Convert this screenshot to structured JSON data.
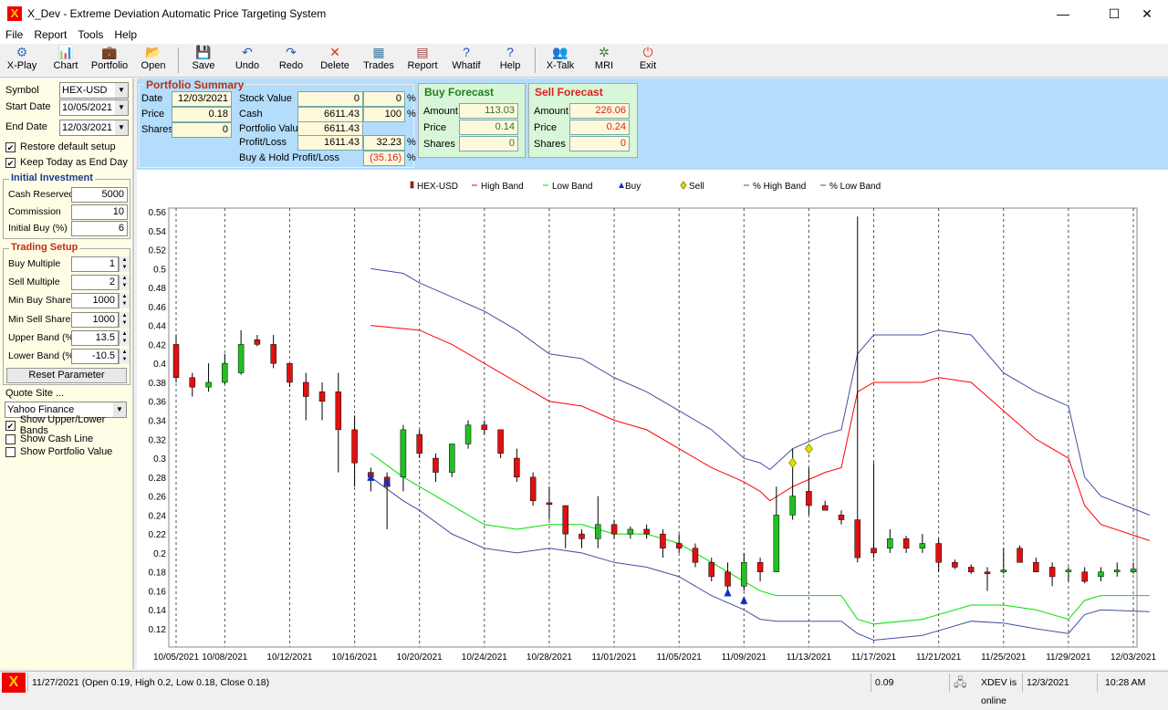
{
  "window": {
    "title": "X_Dev - Extreme Deviation Automatic Price Targeting System"
  },
  "menu": [
    "File",
    "Report",
    "Tools",
    "Help"
  ],
  "toolbar": [
    {
      "label": "X-Play",
      "icon": "x-play-icon",
      "glyph": "⚙",
      "color": "#3a6fc4"
    },
    {
      "label": "Chart",
      "icon": "chart-icon",
      "glyph": "📊",
      "color": "#2a7a2a"
    },
    {
      "label": "Portfolio",
      "icon": "portfolio-icon",
      "glyph": "💼",
      "color": "#a0522d"
    },
    {
      "label": "Open",
      "icon": "open-icon",
      "glyph": "📂",
      "color": "#d4a017"
    },
    {
      "label": "Save",
      "icon": "save-icon",
      "glyph": "💾",
      "color": "#3050a0"
    },
    {
      "label": "Undo",
      "icon": "undo-icon",
      "glyph": "↶",
      "color": "#2060c0"
    },
    {
      "label": "Redo",
      "icon": "redo-icon",
      "glyph": "↷",
      "color": "#2060c0"
    },
    {
      "label": "Delete",
      "icon": "delete-icon",
      "glyph": "✕",
      "color": "#e03020"
    },
    {
      "label": "Trades",
      "icon": "trades-icon",
      "glyph": "▦",
      "color": "#3a7aa0"
    },
    {
      "label": "Report",
      "icon": "report-icon",
      "glyph": "▤",
      "color": "#a04040"
    },
    {
      "label": "Whatif",
      "icon": "whatif-icon",
      "glyph": "?",
      "color": "#2050c0"
    },
    {
      "label": "Help",
      "icon": "help-icon",
      "glyph": "?",
      "color": "#2050c0"
    },
    {
      "label": "X-Talk",
      "icon": "x-talk-icon",
      "glyph": "👥",
      "color": "#c06020"
    },
    {
      "label": "MRI",
      "icon": "mri-icon",
      "glyph": "✲",
      "color": "#408040"
    },
    {
      "label": "Exit",
      "icon": "exit-icon",
      "glyph": "⏻",
      "color": "#e04020"
    }
  ],
  "left": {
    "symbol_label": "Symbol",
    "symbol": "HEX-USD",
    "start_label": "Start Date",
    "start": "10/05/2021",
    "end_label": "End Date",
    "end": "12/03/2021",
    "restore": "Restore default setup",
    "keep_today": "Keep Today as End Day",
    "initial": {
      "title": "Initial Investment",
      "fields": [
        {
          "label": "Cash Reserved",
          "value": "5000"
        },
        {
          "label": "Commission",
          "value": "10"
        },
        {
          "label": "Initial Buy (%)",
          "value": "6"
        }
      ]
    },
    "trading": {
      "title": "Trading Setup",
      "fields": [
        {
          "label": "Buy Multiple",
          "value": "1"
        },
        {
          "label": "Sell Multiple",
          "value": "2"
        },
        {
          "label": "Min Buy Shares",
          "value": "1000"
        },
        {
          "label": "Min Sell Shares",
          "value": "1000"
        },
        {
          "label": "Upper Band (%)",
          "value": "13.5"
        },
        {
          "label": "Lower Band (%)",
          "value": "-10.5"
        }
      ],
      "reset": "Reset Parameter"
    },
    "quote_label": "Quote Site ...",
    "quote": "Yahoo Finance",
    "show_bands": "Show Upper/Lower Bands",
    "show_cash": "Show Cash Line",
    "show_portfolio": "Show Portfolio Value"
  },
  "summary": {
    "title": "Portfolio Summary",
    "date_label": "Date",
    "date": "12/03/2021",
    "price_label": "Price",
    "price": "0.18",
    "shares_label": "Shares",
    "shares": "0",
    "stock_value_label": "Stock Value",
    "stock_value": "0",
    "stock_pct": "0",
    "cash_label": "Cash",
    "cash": "6611.43",
    "cash_pct": "100",
    "portfolio_label": "Portfolio Value",
    "portfolio": "6611.43",
    "pl_label": "Profit/Loss",
    "pl": "1611.43",
    "pl_pct": "32.23",
    "bh_label": "Buy & Hold Profit/Loss",
    "bh_pct": "(35.16)",
    "pct": "%"
  },
  "buy_forecast": {
    "title": "Buy Forecast",
    "amount_label": "Amount",
    "amount": "113.03",
    "price_label": "Price",
    "price": "0.14",
    "shares_label": "Shares",
    "shares": "0"
  },
  "sell_forecast": {
    "title": "Sell Forecast",
    "amount_label": "Amount",
    "amount": "226.06",
    "price_label": "Price",
    "price": "0.24",
    "shares_label": "Shares",
    "shares": "0"
  },
  "chart_data": {
    "type": "candlestick",
    "legend": [
      "HEX-USD",
      "High Band",
      "Low Band",
      "Buy",
      "Sell",
      "% High Band",
      "% Low Band"
    ],
    "colors": {
      "up": "#22c022",
      "down": "#e01010",
      "high_band": "#ff0000",
      "low_band": "#00e000",
      "pct_band": "#4050a0",
      "buy": "#1030c0",
      "sell": "#e0e000"
    },
    "ylim": [
      0.11,
      0.56
    ],
    "yticks": [
      0.12,
      0.14,
      0.16,
      0.18,
      0.2,
      0.22,
      0.24,
      0.26,
      0.28,
      0.3,
      0.32,
      0.34,
      0.36,
      0.38,
      0.4,
      0.42,
      0.44,
      0.46,
      0.48,
      0.5,
      0.52,
      0.54,
      0.56
    ],
    "xticks": [
      {
        "day": 0,
        "label": "10/05/2021"
      },
      {
        "day": 3,
        "label": "10/08/2021"
      },
      {
        "day": 7,
        "label": "10/12/2021"
      },
      {
        "day": 11,
        "label": "10/16/2021"
      },
      {
        "day": 15,
        "label": "10/20/2021"
      },
      {
        "day": 19,
        "label": "10/24/2021"
      },
      {
        "day": 23,
        "label": "10/28/2021"
      },
      {
        "day": 27,
        "label": "11/01/2021"
      },
      {
        "day": 31,
        "label": "11/05/2021"
      },
      {
        "day": 35,
        "label": "11/09/2021"
      },
      {
        "day": 39,
        "label": "11/13/2021"
      },
      {
        "day": 43,
        "label": "11/17/2021"
      },
      {
        "day": 47,
        "label": "11/21/2021"
      },
      {
        "day": 51,
        "label": "11/25/2021"
      },
      {
        "day": 55,
        "label": "11/29/2021"
      },
      {
        "day": 59,
        "label": "12/03/2021"
      }
    ],
    "ohlc": [
      [
        0.42,
        0.43,
        0.38,
        0.385
      ],
      [
        0.385,
        0.39,
        0.365,
        0.375
      ],
      [
        0.375,
        0.4,
        0.37,
        0.38
      ],
      [
        0.38,
        0.41,
        0.378,
        0.4
      ],
      [
        0.39,
        0.435,
        0.388,
        0.42
      ],
      [
        0.425,
        0.43,
        0.418,
        0.42
      ],
      [
        0.42,
        0.43,
        0.395,
        0.4
      ],
      [
        0.4,
        0.4,
        0.375,
        0.38
      ],
      [
        0.38,
        0.39,
        0.34,
        0.365
      ],
      [
        0.37,
        0.38,
        0.34,
        0.36
      ],
      [
        0.37,
        0.39,
        0.285,
        0.33
      ],
      [
        0.33,
        0.345,
        0.27,
        0.295
      ],
      [
        0.285,
        0.29,
        0.265,
        0.28
      ],
      [
        0.28,
        0.285,
        0.225,
        0.27
      ],
      [
        0.28,
        0.335,
        0.265,
        0.33
      ],
      [
        0.325,
        0.33,
        0.3,
        0.305
      ],
      [
        0.3,
        0.305,
        0.275,
        0.285
      ],
      [
        0.285,
        0.315,
        0.28,
        0.315
      ],
      [
        0.315,
        0.34,
        0.31,
        0.335
      ],
      [
        0.335,
        0.34,
        0.325,
        0.33
      ],
      [
        0.33,
        0.33,
        0.3,
        0.305
      ],
      [
        0.3,
        0.31,
        0.275,
        0.28
      ],
      [
        0.28,
        0.285,
        0.25,
        0.255
      ],
      [
        0.253,
        0.27,
        0.235,
        0.252
      ],
      [
        0.25,
        0.25,
        0.205,
        0.22
      ],
      [
        0.22,
        0.225,
        0.205,
        0.215
      ],
      [
        0.215,
        0.26,
        0.205,
        0.23
      ],
      [
        0.23,
        0.235,
        0.215,
        0.22
      ],
      [
        0.22,
        0.228,
        0.215,
        0.225
      ],
      [
        0.225,
        0.23,
        0.215,
        0.22
      ],
      [
        0.22,
        0.225,
        0.195,
        0.205
      ],
      [
        0.21,
        0.22,
        0.2,
        0.205
      ],
      [
        0.205,
        0.21,
        0.185,
        0.19
      ],
      [
        0.19,
        0.195,
        0.17,
        0.175
      ],
      [
        0.18,
        0.19,
        0.16,
        0.165
      ],
      [
        0.165,
        0.2,
        0.16,
        0.19
      ],
      [
        0.19,
        0.195,
        0.17,
        0.18
      ],
      [
        0.18,
        0.27,
        0.18,
        0.24
      ],
      [
        0.24,
        0.31,
        0.235,
        0.26
      ],
      [
        0.265,
        0.29,
        0.24,
        0.25
      ],
      [
        0.25,
        0.255,
        0.245,
        0.245
      ],
      [
        0.24,
        0.245,
        0.23,
        0.235
      ],
      [
        0.235,
        0.555,
        0.19,
        0.195
      ],
      [
        0.205,
        0.295,
        0.195,
        0.2
      ],
      [
        0.205,
        0.225,
        0.2,
        0.215
      ],
      [
        0.215,
        0.218,
        0.2,
        0.205
      ],
      [
        0.205,
        0.22,
        0.2,
        0.21
      ],
      [
        0.21,
        0.215,
        0.18,
        0.19
      ],
      [
        0.19,
        0.193,
        0.183,
        0.185
      ],
      [
        0.185,
        0.188,
        0.178,
        0.18
      ],
      [
        0.18,
        0.185,
        0.16,
        0.178
      ],
      [
        0.18,
        0.205,
        0.178,
        0.182
      ],
      [
        0.205,
        0.208,
        0.19,
        0.19
      ],
      [
        0.19,
        0.195,
        0.18,
        0.18
      ],
      [
        0.185,
        0.19,
        0.165,
        0.175
      ],
      [
        0.18,
        0.185,
        0.17,
        0.182
      ],
      [
        0.18,
        0.185,
        0.168,
        0.17
      ],
      [
        0.175,
        0.185,
        0.17,
        0.18
      ],
      [
        0.18,
        0.19,
        0.175,
        0.182
      ],
      [
        0.18,
        0.19,
        0.178,
        0.183
      ]
    ],
    "high_band": [
      [
        12,
        0.44
      ],
      [
        15,
        0.435
      ],
      [
        17,
        0.42
      ],
      [
        19,
        0.4
      ],
      [
        21,
        0.38
      ],
      [
        23,
        0.36
      ],
      [
        25,
        0.355
      ],
      [
        27,
        0.34
      ],
      [
        29,
        0.33
      ],
      [
        31,
        0.31
      ],
      [
        33,
        0.29
      ],
      [
        35,
        0.275
      ],
      [
        36,
        0.265
      ],
      [
        36.6,
        0.255
      ],
      [
        38,
        0.27
      ],
      [
        40,
        0.285
      ],
      [
        41,
        0.29
      ],
      [
        42,
        0.37
      ],
      [
        43,
        0.38
      ],
      [
        46,
        0.38
      ],
      [
        47,
        0.385
      ],
      [
        49,
        0.38
      ],
      [
        51,
        0.35
      ],
      [
        53,
        0.32
      ],
      [
        55,
        0.3
      ],
      [
        56,
        0.25
      ],
      [
        57,
        0.23
      ],
      [
        60,
        0.213
      ]
    ],
    "pct_high_band": [
      [
        12,
        0.5
      ],
      [
        14,
        0.495
      ],
      [
        15,
        0.485
      ],
      [
        17,
        0.47
      ],
      [
        19,
        0.455
      ],
      [
        21,
        0.435
      ],
      [
        23,
        0.41
      ],
      [
        25,
        0.405
      ],
      [
        27,
        0.385
      ],
      [
        29,
        0.37
      ],
      [
        31,
        0.35
      ],
      [
        33,
        0.33
      ],
      [
        35,
        0.3
      ],
      [
        36,
        0.295
      ],
      [
        36.6,
        0.288
      ],
      [
        38,
        0.31
      ],
      [
        40,
        0.325
      ],
      [
        41,
        0.33
      ],
      [
        42,
        0.41
      ],
      [
        43,
        0.43
      ],
      [
        46,
        0.43
      ],
      [
        47,
        0.435
      ],
      [
        49,
        0.43
      ],
      [
        51,
        0.39
      ],
      [
        53,
        0.37
      ],
      [
        55,
        0.355
      ],
      [
        56,
        0.28
      ],
      [
        57,
        0.26
      ],
      [
        60,
        0.24
      ]
    ],
    "low_band": [
      [
        12,
        0.305
      ],
      [
        14,
        0.28
      ],
      [
        15,
        0.27
      ],
      [
        17,
        0.25
      ],
      [
        19,
        0.23
      ],
      [
        21,
        0.225
      ],
      [
        23,
        0.23
      ],
      [
        25,
        0.23
      ],
      [
        27,
        0.22
      ],
      [
        29,
        0.22
      ],
      [
        31,
        0.21
      ],
      [
        33,
        0.19
      ],
      [
        35,
        0.17
      ],
      [
        36,
        0.16
      ],
      [
        37,
        0.155
      ],
      [
        41,
        0.155
      ],
      [
        42,
        0.13
      ],
      [
        43,
        0.125
      ],
      [
        46,
        0.13
      ],
      [
        47,
        0.135
      ],
      [
        49,
        0.145
      ],
      [
        51,
        0.145
      ],
      [
        53,
        0.14
      ],
      [
        55,
        0.13
      ],
      [
        56,
        0.15
      ],
      [
        57,
        0.155
      ],
      [
        60,
        0.155
      ]
    ],
    "pct_low_band": [
      [
        12,
        0.28
      ],
      [
        14,
        0.255
      ],
      [
        15,
        0.245
      ],
      [
        17,
        0.22
      ],
      [
        19,
        0.205
      ],
      [
        21,
        0.2
      ],
      [
        23,
        0.205
      ],
      [
        25,
        0.2
      ],
      [
        27,
        0.19
      ],
      [
        29,
        0.185
      ],
      [
        31,
        0.175
      ],
      [
        33,
        0.155
      ],
      [
        35,
        0.14
      ],
      [
        36,
        0.13
      ],
      [
        37,
        0.128
      ],
      [
        41,
        0.128
      ],
      [
        42,
        0.115
      ],
      [
        43,
        0.108
      ],
      [
        46,
        0.113
      ],
      [
        47,
        0.118
      ],
      [
        49,
        0.128
      ],
      [
        51,
        0.126
      ],
      [
        53,
        0.12
      ],
      [
        55,
        0.115
      ],
      [
        56,
        0.135
      ],
      [
        57,
        0.14
      ],
      [
        60,
        0.138
      ]
    ],
    "buys": [
      [
        12,
        0.28
      ],
      [
        13,
        0.275
      ],
      [
        34,
        0.158
      ],
      [
        35,
        0.15
      ]
    ],
    "sells": [
      [
        38,
        0.295
      ],
      [
        39,
        0.31
      ]
    ]
  },
  "status": {
    "message": "11/27/2021 (Open 0.19, High 0.2, Low 0.18, Close 0.18)",
    "value": "0.09",
    "online": "XDEV is online",
    "date": "12/3/2021",
    "time": "10:28 AM"
  }
}
